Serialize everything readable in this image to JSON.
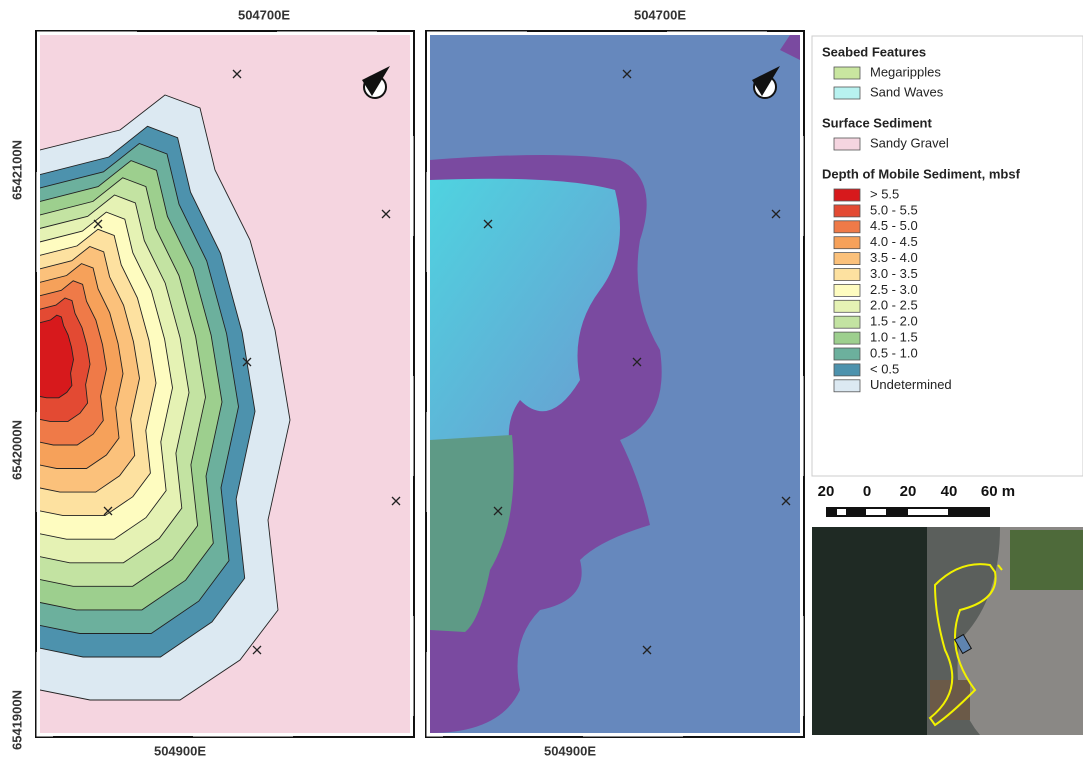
{
  "map_left": {
    "top_label": "504700E",
    "bottom_label": "504900E",
    "left_labels": [
      "6542100N",
      "6542000N",
      "6541900N"
    ]
  },
  "map_right": {
    "top_label": "504700E",
    "bottom_label": "504900E"
  },
  "legend": {
    "sections": [
      {
        "title": "Seabed Features",
        "items": [
          {
            "name": "Megaripples",
            "color": "#c9e6a0"
          },
          {
            "name": "Sand Waves",
            "color": "#b8f2f0"
          }
        ]
      },
      {
        "title": "Surface Sediment",
        "items": [
          {
            "name": "Sandy Gravel",
            "color": "#f5d5e0"
          }
        ]
      },
      {
        "title": "Depth of Mobile Sediment, mbsf",
        "items": [
          {
            "name": "> 5.5",
            "color": "#d7191c"
          },
          {
            "name": "5.0 - 5.5",
            "color": "#e34a33"
          },
          {
            "name": "4.5 - 5.0",
            "color": "#ef7a48"
          },
          {
            "name": "4.0 - 4.5",
            "color": "#f6a15a"
          },
          {
            "name": "3.5 - 4.0",
            "color": "#fbc17b"
          },
          {
            "name": "3.0 - 3.5",
            "color": "#fde1a0"
          },
          {
            "name": "2.5 - 3.0",
            "color": "#fefcc0"
          },
          {
            "name": "2.0 - 2.5",
            "color": "#e5f2b4"
          },
          {
            "name": "1.5 - 2.0",
            "color": "#c3e3a2"
          },
          {
            "name": "1.0 - 1.5",
            "color": "#9dcf8e"
          },
          {
            "name": "0.5 - 1.0",
            "color": "#6cb09d"
          },
          {
            "name": "< 0.5",
            "color": "#4d92ad"
          },
          {
            "name": "Undetermined",
            "color": "#dce9f2"
          }
        ]
      }
    ]
  },
  "scale_bar": {
    "labels": [
      "20",
      "0",
      "20",
      "40",
      "60 m"
    ]
  }
}
